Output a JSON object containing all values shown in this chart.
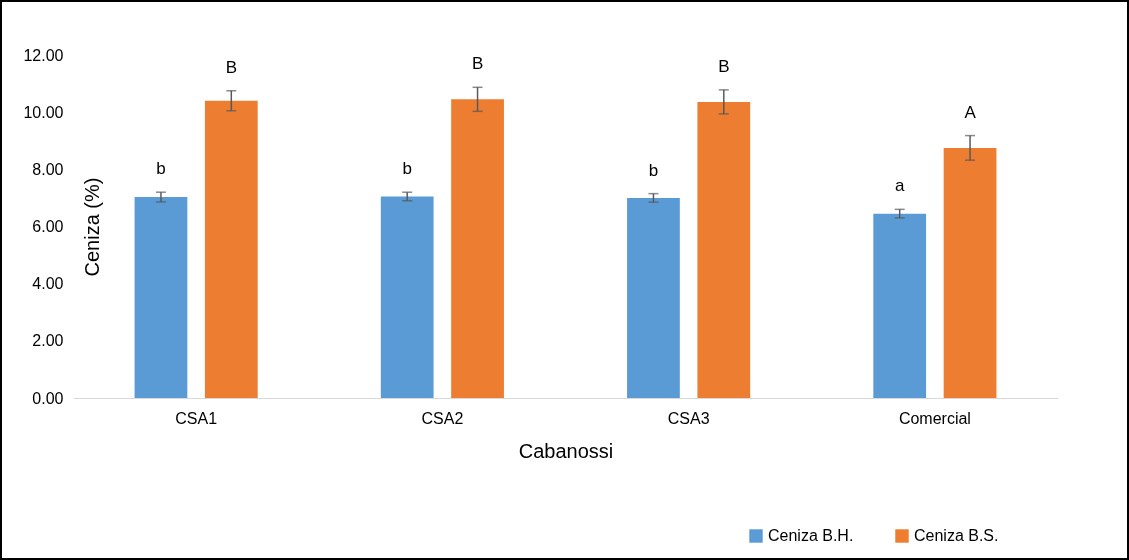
{
  "chart_data": {
    "type": "bar",
    "xlabel": "Cabanossi",
    "ylabel": "Ceniza (%)",
    "categories": [
      "CSA1",
      "CSA2",
      "CSA3",
      "Comercial"
    ],
    "series": [
      {
        "name": "Ceniza B.H.",
        "color": "#5b9bd5",
        "values": [
          7.03,
          7.05,
          7.0,
          6.45
        ],
        "errors": [
          0.17,
          0.15,
          0.15,
          0.15
        ]
      },
      {
        "name": "Ceniza B.S.",
        "color": "#ed7d31",
        "values": [
          10.4,
          10.45,
          10.36,
          8.75
        ],
        "errors": [
          0.35,
          0.42,
          0.42,
          0.43
        ]
      }
    ],
    "ylim": [
      0,
      12
    ],
    "yticks": [
      {
        "value": 0,
        "label": "0.00"
      },
      {
        "value": 2,
        "label": "2.00"
      },
      {
        "value": 4,
        "label": "4.00"
      },
      {
        "value": 6,
        "label": "6.00"
      },
      {
        "value": 8,
        "label": "8.00"
      },
      {
        "value": 10,
        "label": "10.00"
      },
      {
        "value": 12,
        "label": "12.00"
      }
    ],
    "grid": false,
    "legend": "bottom right",
    "annotations": [
      "b",
      "B",
      "b",
      "B",
      "b",
      "B",
      "a",
      "A"
    ]
  }
}
